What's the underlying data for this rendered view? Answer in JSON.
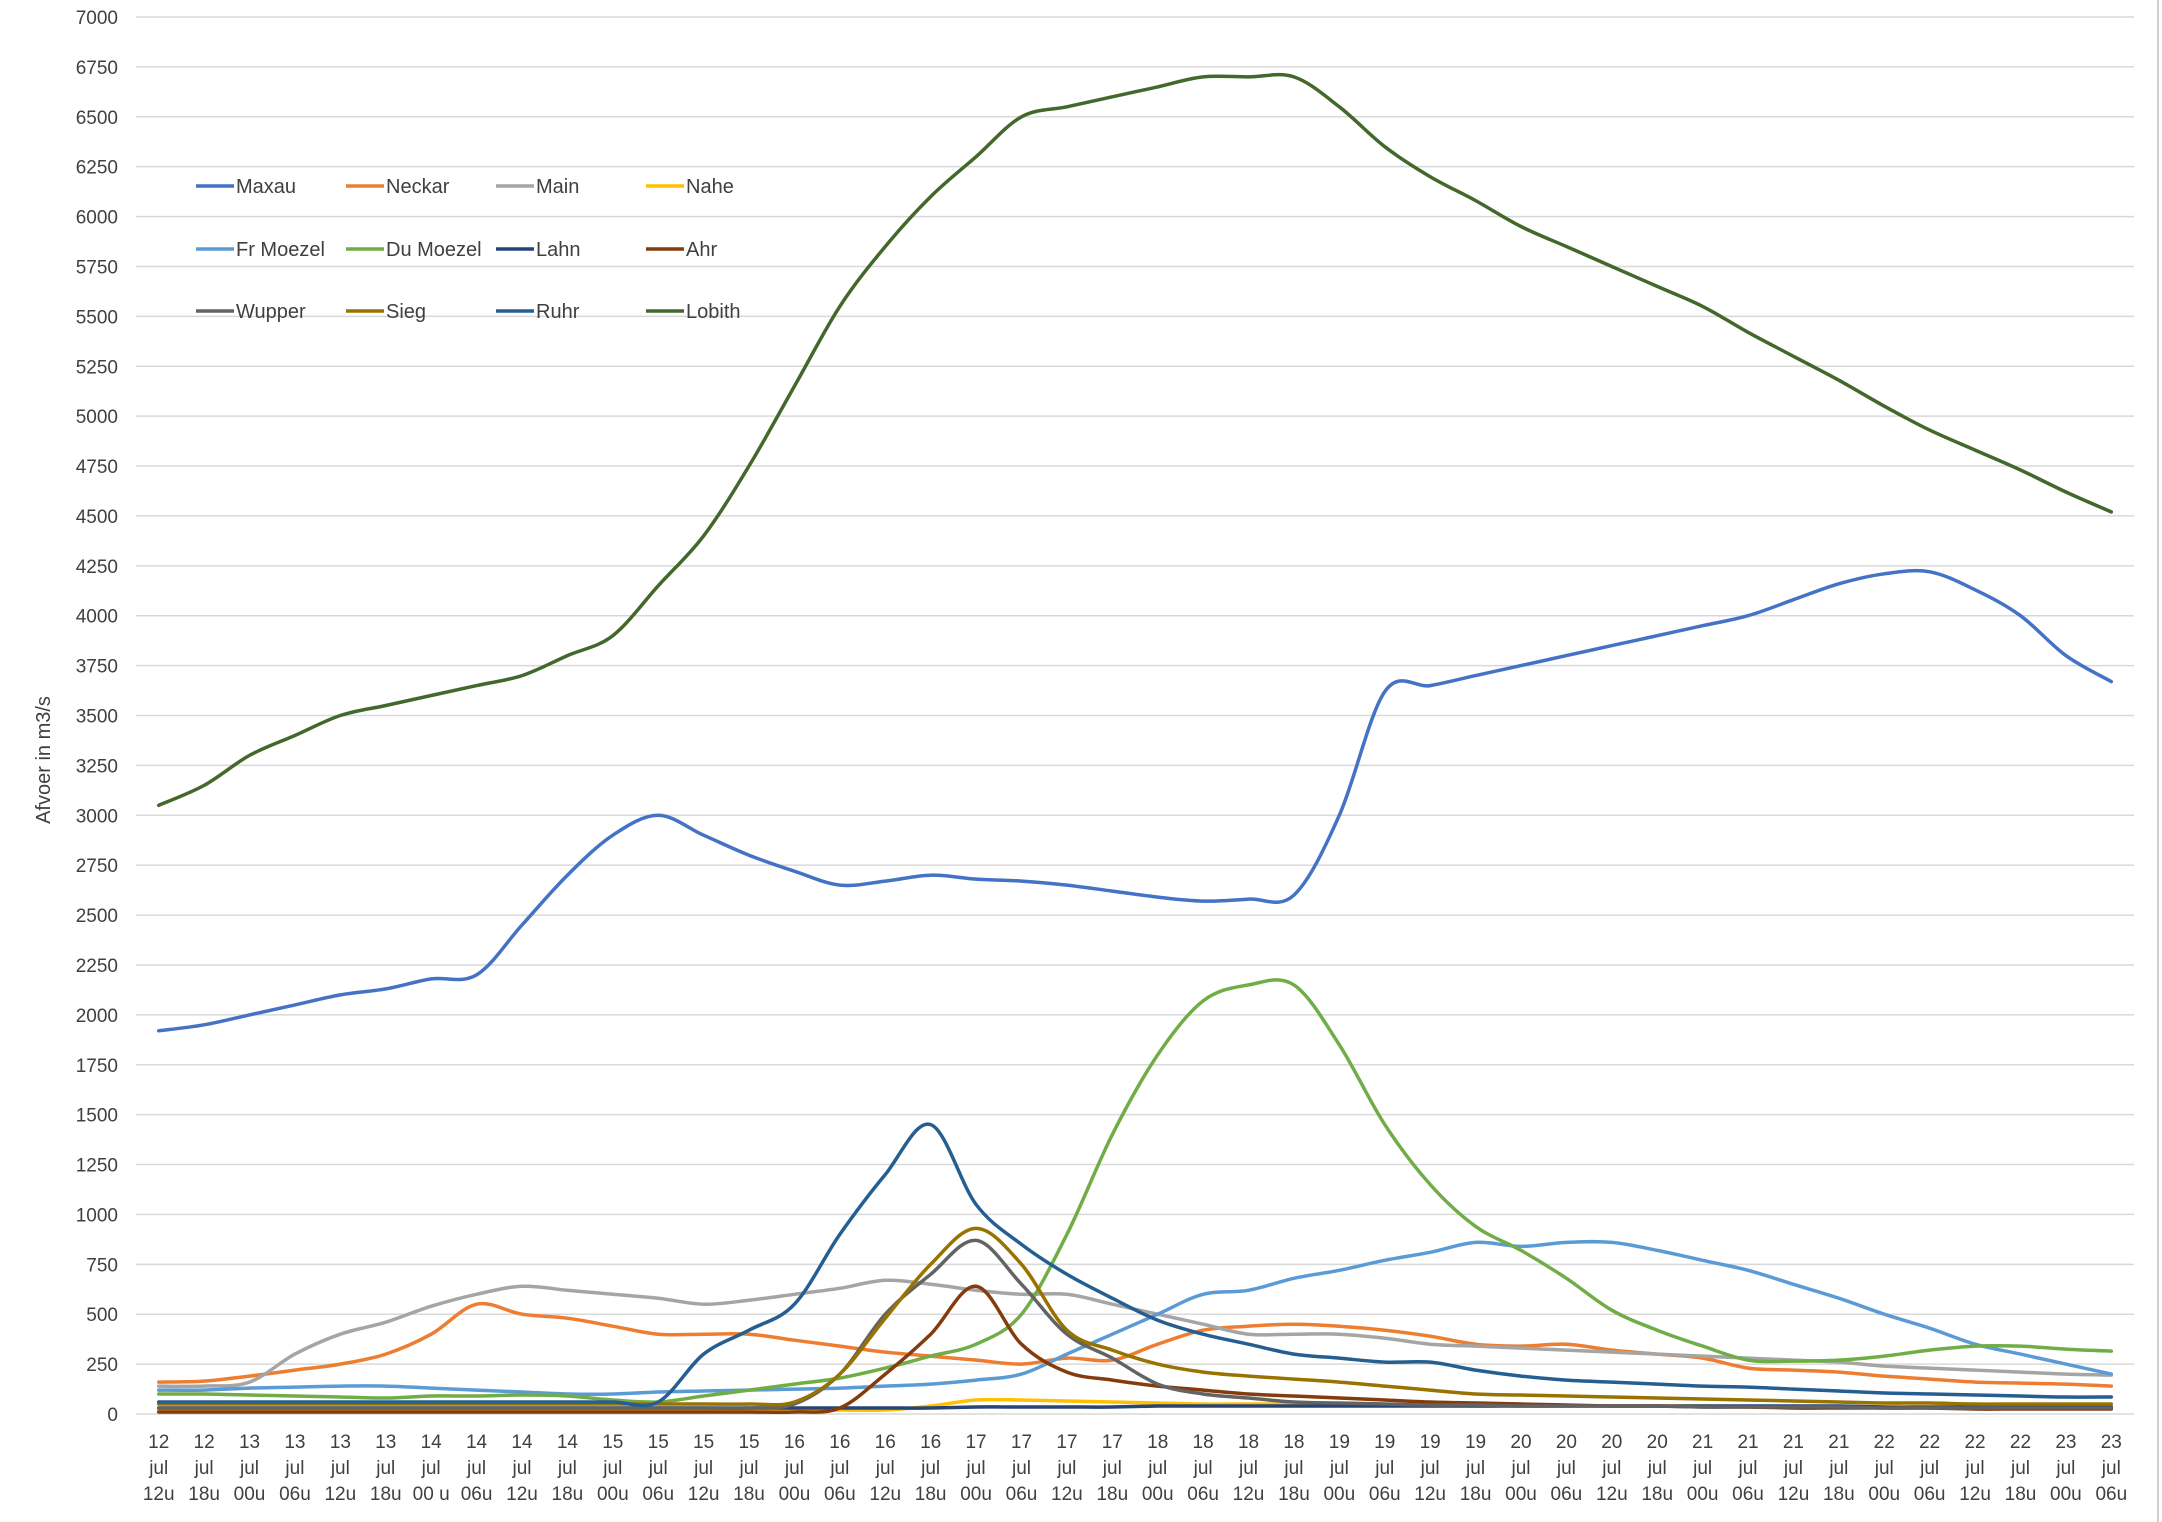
{
  "chart_data": {
    "type": "line",
    "title": "",
    "xlabel": "",
    "ylabel": "Afvoer in m3/s",
    "ylim": [
      0,
      7000
    ],
    "yticks": [
      0,
      250,
      500,
      750,
      1000,
      1250,
      1500,
      1750,
      2000,
      2250,
      2500,
      2750,
      3000,
      3250,
      3500,
      3750,
      4000,
      4250,
      4500,
      4750,
      5000,
      5250,
      5500,
      5750,
      6000,
      6250,
      6500,
      6750,
      7000
    ],
    "grid": true,
    "legend_position": "top-left",
    "categories": [
      [
        "12",
        "jul",
        "12u"
      ],
      [
        "12",
        "jul",
        "18u"
      ],
      [
        "13",
        "jul",
        "00u"
      ],
      [
        "13",
        "jul",
        "06u"
      ],
      [
        "13",
        "jul",
        "12u"
      ],
      [
        "13",
        "jul",
        "18u"
      ],
      [
        "14",
        "jul",
        "00 u"
      ],
      [
        "14",
        "jul",
        "06u"
      ],
      [
        "14",
        "jul",
        "12u"
      ],
      [
        "14",
        "jul",
        "18u"
      ],
      [
        "15",
        "jul",
        "00u"
      ],
      [
        "15",
        "jul",
        "06u"
      ],
      [
        "15",
        "jul",
        "12u"
      ],
      [
        "15",
        "jul",
        "18u"
      ],
      [
        "16",
        "jul",
        "00u"
      ],
      [
        "16",
        "jul",
        "06u"
      ],
      [
        "16",
        "jul",
        "12u"
      ],
      [
        "16",
        "jul",
        "18u"
      ],
      [
        "17",
        "jul",
        "00u"
      ],
      [
        "17",
        "jul",
        "06u"
      ],
      [
        "17",
        "jul",
        "12u"
      ],
      [
        "17",
        "jul",
        "18u"
      ],
      [
        "18",
        "jul",
        "00u"
      ],
      [
        "18",
        "jul",
        "06u"
      ],
      [
        "18",
        "jul",
        "12u"
      ],
      [
        "18",
        "jul",
        "18u"
      ],
      [
        "19",
        "jul",
        "00u"
      ],
      [
        "19",
        "jul",
        "06u"
      ],
      [
        "19",
        "jul",
        "12u"
      ],
      [
        "19",
        "jul",
        "18u"
      ],
      [
        "20",
        "jul",
        "00u"
      ],
      [
        "20",
        "jul",
        "06u"
      ],
      [
        "20",
        "jul",
        "12u"
      ],
      [
        "20",
        "jul",
        "18u"
      ],
      [
        "21",
        "jul",
        "00u"
      ],
      [
        "21",
        "jul",
        "06u"
      ],
      [
        "21",
        "jul",
        "12u"
      ],
      [
        "21",
        "jul",
        "18u"
      ],
      [
        "22",
        "jul",
        "00u"
      ],
      [
        "22",
        "jul",
        "06u"
      ],
      [
        "22",
        "jul",
        "12u"
      ],
      [
        "22",
        "jul",
        "18u"
      ],
      [
        "23",
        "jul",
        "00u"
      ],
      [
        "23",
        "jul",
        "06u"
      ]
    ],
    "series": [
      {
        "name": "Maxau",
        "color": "#4472C4",
        "values": [
          1920,
          1950,
          2000,
          2050,
          2100,
          2130,
          2180,
          2200,
          2450,
          2700,
          2900,
          3000,
          2900,
          2800,
          2720,
          2650,
          2670,
          2700,
          2680,
          2670,
          2650,
          2620,
          2590,
          2570,
          2580,
          2600,
          3000,
          3620,
          3650,
          3700,
          3750,
          3800,
          3850,
          3900,
          3950,
          4000,
          4080,
          4160,
          4210,
          4220,
          4130,
          4000,
          3800,
          3670
        ]
      },
      {
        "name": "Neckar",
        "color": "#ED7D31",
        "values": [
          160,
          165,
          190,
          220,
          250,
          300,
          400,
          550,
          500,
          480,
          440,
          400,
          400,
          400,
          370,
          340,
          310,
          290,
          270,
          250,
          280,
          270,
          350,
          420,
          440,
          450,
          440,
          420,
          390,
          350,
          340,
          350,
          320,
          300,
          280,
          230,
          220,
          210,
          190,
          175,
          160,
          155,
          150,
          140
        ]
      },
      {
        "name": "Main",
        "color": "#A5A5A5",
        "values": [
          140,
          140,
          160,
          300,
          400,
          460,
          540,
          600,
          640,
          620,
          600,
          580,
          550,
          570,
          600,
          630,
          670,
          650,
          620,
          600,
          600,
          550,
          500,
          450,
          400,
          400,
          400,
          380,
          350,
          340,
          330,
          320,
          310,
          300,
          290,
          280,
          270,
          260,
          240,
          230,
          220,
          210,
          200,
          195
        ]
      },
      {
        "name": "Nahe",
        "color": "#FFC000",
        "values": [
          20,
          20,
          20,
          20,
          20,
          20,
          20,
          20,
          20,
          20,
          20,
          20,
          20,
          20,
          20,
          20,
          20,
          40,
          70,
          70,
          65,
          60,
          55,
          50,
          50,
          50,
          50,
          45,
          45,
          40,
          40,
          40,
          40,
          40,
          40,
          35,
          35,
          35,
          30,
          30,
          30,
          30,
          30,
          30
        ]
      },
      {
        "name": "Fr Moezel",
        "color": "#5B9BD5",
        "values": [
          120,
          120,
          130,
          135,
          140,
          140,
          130,
          120,
          110,
          100,
          100,
          110,
          115,
          120,
          125,
          130,
          140,
          150,
          170,
          200,
          300,
          400,
          500,
          600,
          620,
          680,
          720,
          770,
          810,
          860,
          840,
          860,
          860,
          820,
          770,
          720,
          650,
          580,
          500,
          430,
          350,
          300,
          250,
          200
        ]
      },
      {
        "name": "Du Moezel",
        "color": "#70AD47",
        "values": [
          100,
          100,
          95,
          90,
          85,
          80,
          90,
          90,
          95,
          90,
          70,
          60,
          90,
          120,
          150,
          180,
          230,
          290,
          350,
          500,
          900,
          1400,
          1800,
          2070,
          2150,
          2150,
          1850,
          1450,
          1150,
          940,
          820,
          680,
          520,
          420,
          340,
          270,
          265,
          270,
          290,
          320,
          340,
          340,
          325,
          315
        ]
      },
      {
        "name": "Lahn",
        "color": "#264478",
        "values": [
          30,
          30,
          30,
          30,
          30,
          30,
          30,
          30,
          30,
          30,
          30,
          30,
          30,
          30,
          30,
          30,
          30,
          30,
          35,
          35,
          35,
          35,
          40,
          40,
          40,
          40,
          40,
          40,
          40,
          40,
          40,
          40,
          40,
          40,
          40,
          40,
          40,
          40,
          35,
          35,
          35,
          35,
          35,
          35
        ]
      },
      {
        "name": "Ahr",
        "color": "#843C0C",
        "values": [
          10,
          10,
          10,
          10,
          10,
          10,
          10,
          10,
          10,
          10,
          10,
          10,
          10,
          10,
          10,
          30,
          200,
          400,
          640,
          350,
          210,
          170,
          140,
          120,
          100,
          90,
          80,
          70,
          60,
          55,
          50,
          45,
          40,
          40,
          35,
          35,
          30,
          30,
          30,
          30,
          25,
          25,
          25,
          25
        ]
      },
      {
        "name": "Wupper",
        "color": "#636363",
        "values": [
          30,
          30,
          30,
          30,
          30,
          30,
          30,
          30,
          30,
          30,
          30,
          30,
          30,
          30,
          50,
          200,
          500,
          700,
          870,
          650,
          400,
          280,
          150,
          100,
          80,
          60,
          55,
          50,
          45,
          45,
          40,
          40,
          40,
          40,
          35,
          35,
          35,
          35,
          30,
          30,
          30,
          30,
          30,
          30
        ]
      },
      {
        "name": "Sieg",
        "color": "#997300",
        "values": [
          50,
          50,
          50,
          50,
          50,
          50,
          50,
          50,
          50,
          50,
          50,
          50,
          50,
          50,
          60,
          200,
          480,
          750,
          930,
          750,
          420,
          320,
          250,
          210,
          190,
          175,
          160,
          140,
          120,
          100,
          95,
          90,
          85,
          80,
          75,
          70,
          65,
          60,
          55,
          55,
          50,
          50,
          50,
          50
        ]
      },
      {
        "name": "Ruhr",
        "color": "#255E91",
        "values": [
          60,
          60,
          60,
          60,
          60,
          60,
          60,
          60,
          60,
          60,
          60,
          60,
          300,
          420,
          550,
          900,
          1200,
          1450,
          1050,
          850,
          700,
          580,
          470,
          400,
          350,
          300,
          280,
          260,
          260,
          220,
          190,
          170,
          160,
          150,
          140,
          135,
          125,
          115,
          105,
          100,
          95,
          90,
          85,
          85
        ]
      },
      {
        "name": "Lobith",
        "color": "#43682B",
        "values": [
          3050,
          3150,
          3300,
          3400,
          3500,
          3550,
          3600,
          3650,
          3700,
          3800,
          3900,
          4150,
          4400,
          4750,
          5150,
          5550,
          5850,
          6100,
          6300,
          6500,
          6550,
          6600,
          6650,
          6700,
          6700,
          6700,
          6550,
          6350,
          6200,
          6080,
          5950,
          5850,
          5750,
          5650,
          5550,
          5420,
          5300,
          5180,
          5050,
          4930,
          4830,
          4730,
          4620,
          4520
        ]
      }
    ]
  }
}
